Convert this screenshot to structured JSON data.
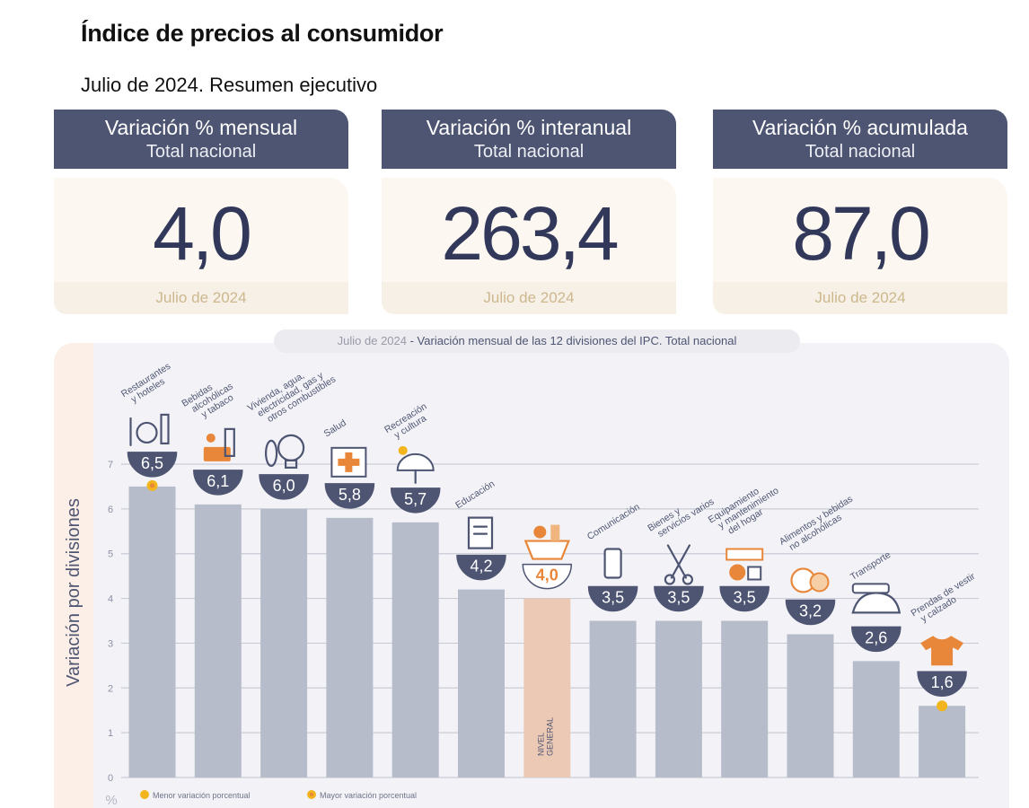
{
  "header": {
    "title": "Índice de precios al consumidor",
    "subtitle": "Julio de 2024. Resumen ejecutivo"
  },
  "cards": [
    {
      "title": "Variación % mensual",
      "sub": "Total nacional",
      "value": "4,0",
      "period": "Julio de 2024"
    },
    {
      "title": "Variación % interanual",
      "sub": "Total nacional",
      "value": "263,4",
      "period": "Julio de 2024"
    },
    {
      "title": "Variación % acumulada",
      "sub": "Total nacional",
      "value": "87,0",
      "period": "Julio de 2024"
    }
  ],
  "colors": {
    "navy": "#4e5572",
    "bar": "#b6bcca",
    "general_bar": "#ecc9b5",
    "orange": "#e8873a",
    "marker": "#f2b51e"
  },
  "chart_data": {
    "type": "bar",
    "title_date": "Julio de 2024",
    "title_rest": " - Variación mensual de las 12 divisiones del IPC. Total nacional",
    "ylabel": "Variación por divisiones",
    "yunit": "%",
    "ylim": [
      0,
      7
    ],
    "yticks": [
      "0",
      "1",
      "2",
      "3",
      "4",
      "5",
      "6",
      "7"
    ],
    "grid": true,
    "categories": [
      [
        "Restaurantes",
        "y hoteles"
      ],
      [
        "Bebidas",
        "alcohólicas",
        "y tabaco"
      ],
      [
        "Vivienda, agua,",
        "electricidad, gas y",
        "otros combustibles"
      ],
      [
        "Salud"
      ],
      [
        "Recreación",
        "y cultura"
      ],
      [
        "Educación"
      ],
      [
        "NIVEL",
        "GENERAL"
      ],
      [
        "Comunicación"
      ],
      [
        "Bienes y",
        "servicios varios"
      ],
      [
        "Equipamiento",
        "y mantenimiento",
        "del hogar"
      ],
      [
        "Alimentos y bebidas",
        "no alcohólicas"
      ],
      [
        "Transporte"
      ],
      [
        "Prendas de vestir",
        "y calzado"
      ]
    ],
    "values": [
      6.5,
      6.1,
      6.0,
      5.8,
      5.7,
      4.2,
      4.0,
      3.5,
      3.5,
      3.5,
      3.2,
      2.6,
      1.6
    ],
    "labels": [
      "6,5",
      "6,1",
      "6,0",
      "5,8",
      "5,7",
      "4,2",
      "4,0",
      "3,5",
      "3,5",
      "3,5",
      "3,2",
      "2,6",
      "1,6"
    ],
    "icons": [
      "restaurant-icon",
      "drinks-icon",
      "lightbulb-icon",
      "health-cross-icon",
      "recreation-icon",
      "book-icon",
      "basket-icon",
      "phone-icon",
      "scissors-icon",
      "appliances-icon",
      "food-icon",
      "car-icon",
      "tshirt-icon"
    ],
    "highlight": {
      "general_index": 6,
      "max_index": 0,
      "min_index": 12
    },
    "legend": [
      {
        "label": "Menor variación porcentual",
        "type": "min"
      },
      {
        "label": "Mayor variación porcentual",
        "type": "max"
      }
    ]
  }
}
